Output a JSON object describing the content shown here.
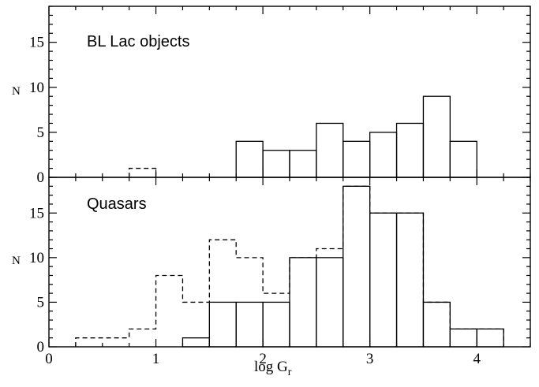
{
  "chart_data": [
    {
      "type": "bar",
      "title": "BL Lac objects",
      "xlabel": "",
      "ylabel": "N",
      "xlim": [
        0,
        4.5
      ],
      "ylim": [
        0,
        19
      ],
      "yticks": [
        0,
        5,
        10,
        15
      ],
      "bin_width": 0.25,
      "series": [
        {
          "style": "solid",
          "bins": [
            {
              "x0": 1.75,
              "value": 4
            },
            {
              "x0": 2.0,
              "value": 3
            },
            {
              "x0": 2.25,
              "value": 3
            },
            {
              "x0": 2.5,
              "value": 6
            },
            {
              "x0": 2.75,
              "value": 4
            },
            {
              "x0": 3.0,
              "value": 5
            },
            {
              "x0": 3.25,
              "value": 6
            },
            {
              "x0": 3.5,
              "value": 9
            },
            {
              "x0": 3.75,
              "value": 4
            }
          ]
        },
        {
          "style": "dashed",
          "bins": [
            {
              "x0": 0.75,
              "value": 1
            }
          ]
        }
      ]
    },
    {
      "type": "bar",
      "title": "Quasars",
      "xlabel": "log G_r",
      "ylabel": "N",
      "xlim": [
        0,
        4.5
      ],
      "ylim": [
        0,
        19
      ],
      "xticks": [
        "0",
        "1",
        "2",
        "3",
        "4"
      ],
      "yticks": [
        0,
        5,
        10,
        15
      ],
      "bin_width": 0.25,
      "series": [
        {
          "style": "solid",
          "bins": [
            {
              "x0": 1.25,
              "value": 1
            },
            {
              "x0": 1.5,
              "value": 5
            },
            {
              "x0": 1.75,
              "value": 5
            },
            {
              "x0": 2.0,
              "value": 5
            },
            {
              "x0": 2.25,
              "value": 10
            },
            {
              "x0": 2.5,
              "value": 10
            },
            {
              "x0": 2.75,
              "value": 18
            },
            {
              "x0": 3.0,
              "value": 15
            },
            {
              "x0": 3.25,
              "value": 15
            },
            {
              "x0": 3.5,
              "value": 5
            },
            {
              "x0": 3.75,
              "value": 2
            },
            {
              "x0": 4.0,
              "value": 2
            }
          ]
        },
        {
          "style": "dashed",
          "bins": [
            {
              "x0": 0.25,
              "value": 1
            },
            {
              "x0": 0.5,
              "value": 1
            },
            {
              "x0": 0.75,
              "value": 2
            },
            {
              "x0": 1.0,
              "value": 8
            },
            {
              "x0": 1.25,
              "value": 5
            },
            {
              "x0": 1.5,
              "value": 12
            },
            {
              "x0": 1.75,
              "value": 10
            },
            {
              "x0": 2.0,
              "value": 6
            },
            {
              "x0": 2.25,
              "value": 10
            },
            {
              "x0": 2.5,
              "value": 11
            },
            {
              "x0": 2.75,
              "value": 18
            },
            {
              "x0": 3.0,
              "value": 15
            },
            {
              "x0": 3.25,
              "value": 15
            },
            {
              "x0": 3.5,
              "value": 5
            },
            {
              "x0": 3.75,
              "value": 2
            },
            {
              "x0": 4.0,
              "value": 2
            }
          ]
        }
      ]
    }
  ],
  "labels": {
    "top_title": "BL Lac objects",
    "bottom_title": "Quasars",
    "ylabel_top": "N",
    "ylabel_bottom": "N",
    "xlabel_main": "log G",
    "xlabel_sub": "r"
  }
}
